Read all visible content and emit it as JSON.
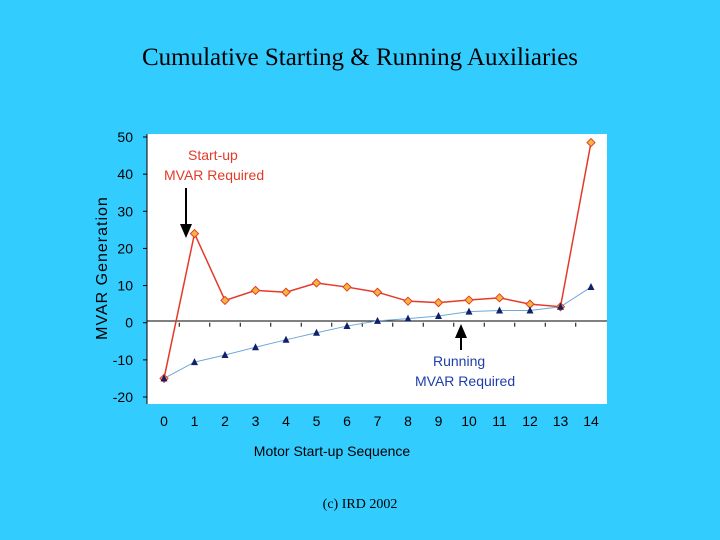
{
  "title": "Cumulative Starting & Running Auxiliaries",
  "footer": "(c) IRD 2002",
  "colors": {
    "background": "#33ccff",
    "plot_area": "#ffffff",
    "startup_series": "#e43a2a",
    "running_series": "#1f3fa8"
  },
  "chart_data": {
    "type": "line",
    "xlabel": "Motor Start-up Sequence",
    "ylabel": "MVAR Generation",
    "x": [
      0,
      1,
      2,
      3,
      4,
      5,
      6,
      7,
      8,
      9,
      10,
      11,
      12,
      13,
      14
    ],
    "x_ticks": [
      "0",
      "1",
      "2",
      "3",
      "4",
      "5",
      "6",
      "7",
      "8",
      "9",
      "10",
      "11",
      "12",
      "13",
      "14"
    ],
    "ylim": [
      -20,
      50
    ],
    "y_ticks": [
      "50",
      "40",
      "30",
      "20",
      "10",
      "0",
      "-10",
      "-20"
    ],
    "grid": false,
    "series": [
      {
        "values": [
          -15,
          24,
          6,
          8.7,
          8.2,
          10.7,
          9.6,
          8.2,
          5.8,
          5.4,
          6.1,
          6.7,
          5.0,
          4.3,
          48.5
        ],
        "marker": "diamond"
      },
      {
        "values": [
          -15,
          -10.6,
          -8.7,
          -6.6,
          -4.6,
          -2.7,
          -0.9,
          0.5,
          1.1,
          1.8,
          3.0,
          3.3,
          3.3,
          4.3,
          9.6
        ],
        "marker": "triangle"
      }
    ],
    "annotations": [
      {
        "lines": [
          "Start-up",
          "MVAR Required"
        ],
        "points_to_x": 1
      },
      {
        "lines": [
          "Running",
          "MVAR Required"
        ],
        "points_to_x": 10
      }
    ]
  }
}
